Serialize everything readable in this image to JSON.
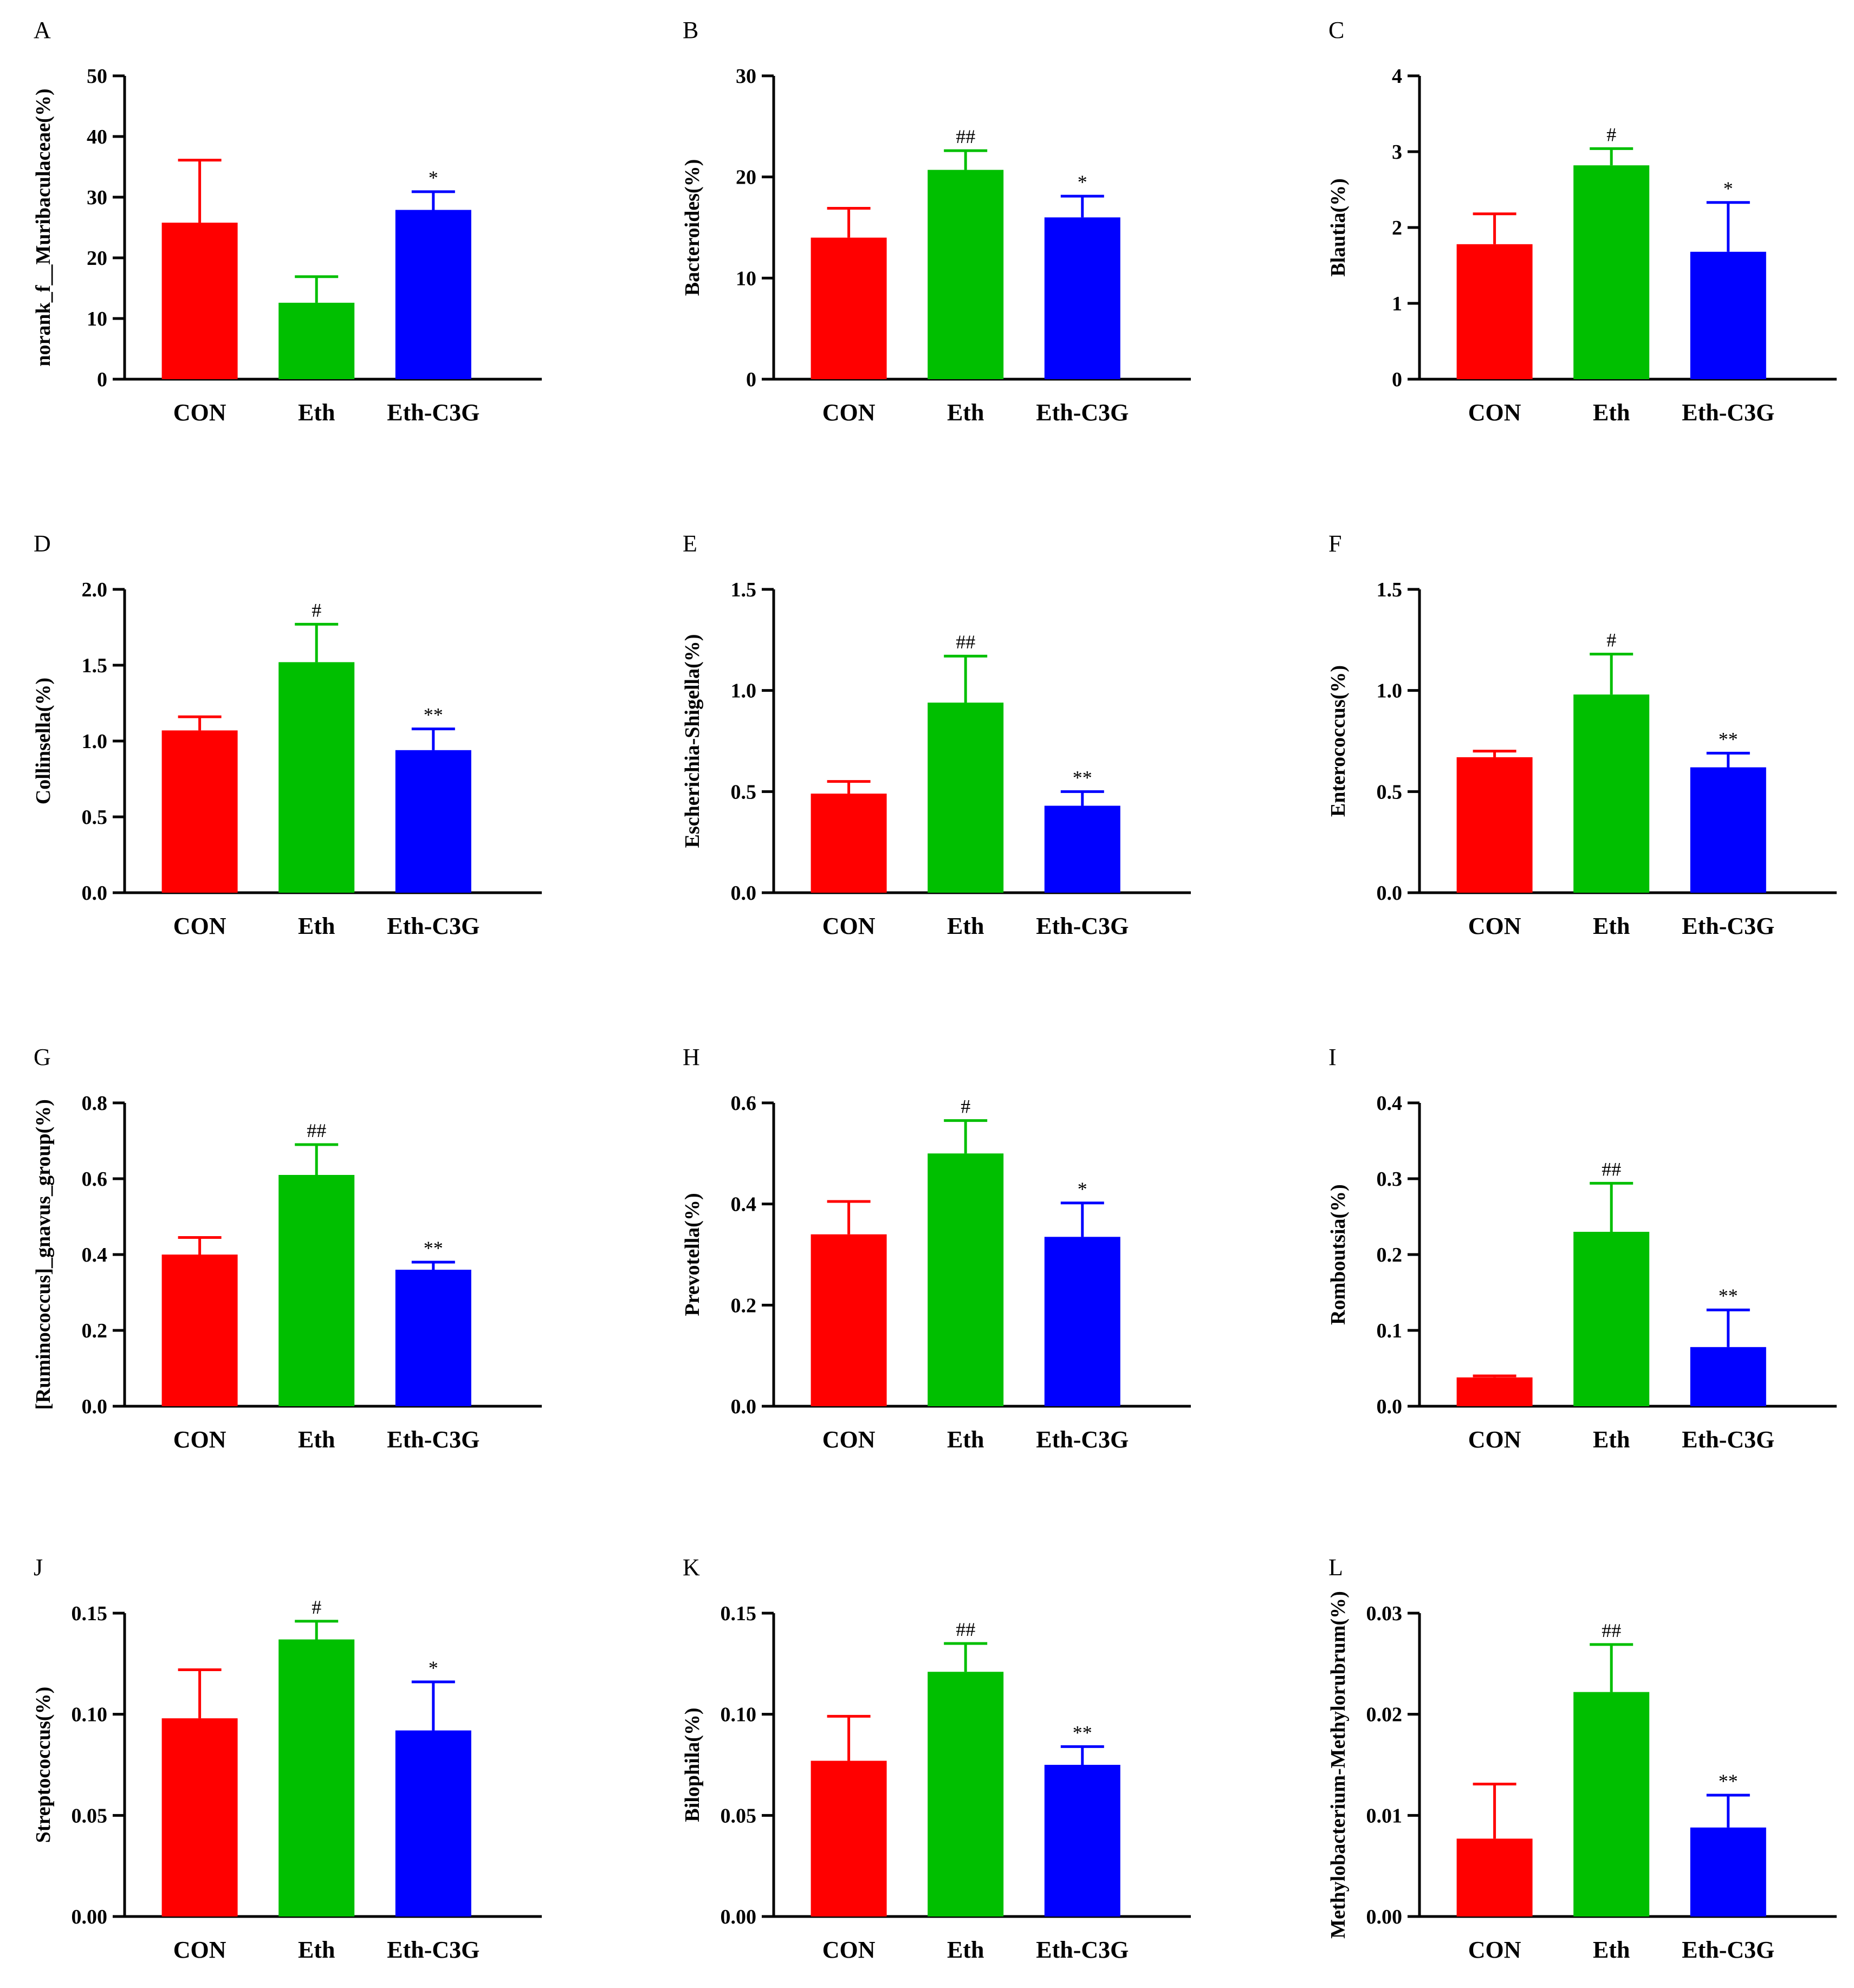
{
  "figure": {
    "categories": [
      "CON",
      "Eth",
      "Eth-C3G"
    ],
    "colors": [
      "#ff0000",
      "#00bf00",
      "#0000ff"
    ]
  },
  "chart_data": [
    {
      "type": "bar",
      "letter": "A",
      "title": "",
      "xlabel": "",
      "ylabel": "norank_f__Muribaculaceae(%)",
      "categories": [
        "CON",
        "Eth",
        "Eth-C3G"
      ],
      "values": [
        25.8,
        12.6,
        27.9
      ],
      "errors": [
        10.3,
        4.3,
        3.0
      ],
      "sig": [
        "",
        "",
        "*"
      ],
      "ylim": [
        0,
        50
      ],
      "ticks": [
        "0",
        "10",
        "20",
        "30",
        "40",
        "50"
      ],
      "tick_values": [
        0,
        10,
        20,
        30,
        40,
        50
      ]
    },
    {
      "type": "bar",
      "letter": "B",
      "title": "",
      "xlabel": "",
      "ylabel": "Bacteroides(%)",
      "categories": [
        "CON",
        "Eth",
        "Eth-C3G"
      ],
      "values": [
        14.0,
        20.7,
        16.0
      ],
      "errors": [
        2.9,
        1.9,
        2.1
      ],
      "sig": [
        "",
        "##",
        "*"
      ],
      "ylim": [
        0,
        30
      ],
      "ticks": [
        "0",
        "10",
        "20",
        "30"
      ],
      "tick_values": [
        0,
        10,
        20,
        30
      ]
    },
    {
      "type": "bar",
      "letter": "C",
      "title": "",
      "xlabel": "",
      "ylabel": "Blautia(%)",
      "categories": [
        "CON",
        "Eth",
        "Eth-C3G"
      ],
      "values": [
        1.78,
        2.82,
        1.68
      ],
      "errors": [
        0.4,
        0.22,
        0.65
      ],
      "sig": [
        "",
        "#",
        "*"
      ],
      "ylim": [
        0,
        4
      ],
      "ticks": [
        "0",
        "1",
        "2",
        "3",
        "4"
      ],
      "tick_values": [
        0,
        1,
        2,
        3,
        4
      ]
    },
    {
      "type": "bar",
      "letter": "D",
      "title": "",
      "xlabel": "",
      "ylabel": "Collinsella(%)",
      "categories": [
        "CON",
        "Eth",
        "Eth-C3G"
      ],
      "values": [
        1.07,
        1.52,
        0.94
      ],
      "errors": [
        0.09,
        0.25,
        0.14
      ],
      "sig": [
        "",
        "#",
        "**"
      ],
      "ylim": [
        0,
        2
      ],
      "ticks": [
        "0.0",
        "0.5",
        "1.0",
        "1.5",
        "2.0"
      ],
      "tick_values": [
        0,
        0.5,
        1,
        1.5,
        2
      ]
    },
    {
      "type": "bar",
      "letter": "E",
      "title": "",
      "xlabel": "",
      "ylabel": "Escherichia-Shigella(%)",
      "categories": [
        "CON",
        "Eth",
        "Eth-C3G"
      ],
      "values": [
        0.49,
        0.94,
        0.43
      ],
      "errors": [
        0.06,
        0.23,
        0.07
      ],
      "sig": [
        "",
        "##",
        "**"
      ],
      "ylim": [
        0,
        1.5
      ],
      "ticks": [
        "0.0",
        "0.5",
        "1.0",
        "1.5"
      ],
      "tick_values": [
        0,
        0.5,
        1,
        1.5
      ]
    },
    {
      "type": "bar",
      "letter": "F",
      "title": "",
      "xlabel": "",
      "ylabel": "Enterococcus(%)",
      "categories": [
        "CON",
        "Eth",
        "Eth-C3G"
      ],
      "values": [
        0.67,
        0.98,
        0.62
      ],
      "errors": [
        0.03,
        0.2,
        0.07
      ],
      "sig": [
        "",
        "#",
        "**"
      ],
      "ylim": [
        0,
        1.5
      ],
      "ticks": [
        "0.0",
        "0.5",
        "1.0",
        "1.5"
      ],
      "tick_values": [
        0,
        0.5,
        1,
        1.5
      ]
    },
    {
      "type": "bar",
      "letter": "G",
      "title": "",
      "xlabel": "",
      "ylabel": "[Ruminococcus]_gnavus_group(%)",
      "categories": [
        "CON",
        "Eth",
        "Eth-C3G"
      ],
      "values": [
        0.4,
        0.61,
        0.36
      ],
      "errors": [
        0.045,
        0.08,
        0.02
      ],
      "sig": [
        "",
        "##",
        "**"
      ],
      "ylim": [
        0,
        0.8
      ],
      "ticks": [
        "0.0",
        "0.2",
        "0.4",
        "0.6",
        "0.8"
      ],
      "tick_values": [
        0,
        0.2,
        0.4,
        0.6,
        0.8
      ]
    },
    {
      "type": "bar",
      "letter": "H",
      "title": "",
      "xlabel": "",
      "ylabel": "Prevotella(%)",
      "categories": [
        "CON",
        "Eth",
        "Eth-C3G"
      ],
      "values": [
        0.34,
        0.5,
        0.335
      ],
      "errors": [
        0.065,
        0.065,
        0.067
      ],
      "sig": [
        "",
        "#",
        "*"
      ],
      "ylim": [
        0,
        0.6
      ],
      "ticks": [
        "0.0",
        "0.2",
        "0.4",
        "0.6"
      ],
      "tick_values": [
        0,
        0.2,
        0.4,
        0.6
      ]
    },
    {
      "type": "bar",
      "letter": "I",
      "title": "",
      "xlabel": "",
      "ylabel": "Romboutsia(%)",
      "categories": [
        "CON",
        "Eth",
        "Eth-C3G"
      ],
      "values": [
        0.038,
        0.23,
        0.078
      ],
      "errors": [
        0.002,
        0.064,
        0.049
      ],
      "sig": [
        "",
        "##",
        "**"
      ],
      "ylim": [
        0,
        0.4
      ],
      "ticks": [
        "0.0",
        "0.1",
        "0.2",
        "0.3",
        "0.4"
      ],
      "tick_values": [
        0,
        0.1,
        0.2,
        0.3,
        0.4
      ]
    },
    {
      "type": "bar",
      "letter": "J",
      "title": "",
      "xlabel": "",
      "ylabel": "Streptococcus(%)",
      "categories": [
        "CON",
        "Eth",
        "Eth-C3G"
      ],
      "values": [
        0.098,
        0.137,
        0.092
      ],
      "errors": [
        0.024,
        0.009,
        0.024
      ],
      "sig": [
        "",
        "#",
        "*"
      ],
      "ylim": [
        0,
        0.15
      ],
      "ticks": [
        "0.00",
        "0.05",
        "0.10",
        "0.15"
      ],
      "tick_values": [
        0,
        0.05,
        0.1,
        0.15
      ]
    },
    {
      "type": "bar",
      "letter": "K",
      "title": "",
      "xlabel": "",
      "ylabel": "Bilophila(%)",
      "categories": [
        "CON",
        "Eth",
        "Eth-C3G"
      ],
      "values": [
        0.077,
        0.121,
        0.075
      ],
      "errors": [
        0.022,
        0.014,
        0.009
      ],
      "sig": [
        "",
        "##",
        "**"
      ],
      "ylim": [
        0,
        0.15
      ],
      "ticks": [
        "0.00",
        "0.05",
        "0.10",
        "0.15"
      ],
      "tick_values": [
        0,
        0.05,
        0.1,
        0.15
      ]
    },
    {
      "type": "bar",
      "letter": "L",
      "title": "",
      "xlabel": "",
      "ylabel": "Methylobacterium-Methylorubrum(%)",
      "categories": [
        "CON",
        "Eth",
        "Eth-C3G"
      ],
      "values": [
        0.0077,
        0.0222,
        0.0088
      ],
      "errors": [
        0.0054,
        0.0047,
        0.0032
      ],
      "sig": [
        "",
        "##",
        "**"
      ],
      "ylim": [
        0,
        0.03
      ],
      "ticks": [
        "0.00",
        "0.01",
        "0.02",
        "0.03"
      ],
      "tick_values": [
        0,
        0.01,
        0.02,
        0.03
      ]
    }
  ]
}
